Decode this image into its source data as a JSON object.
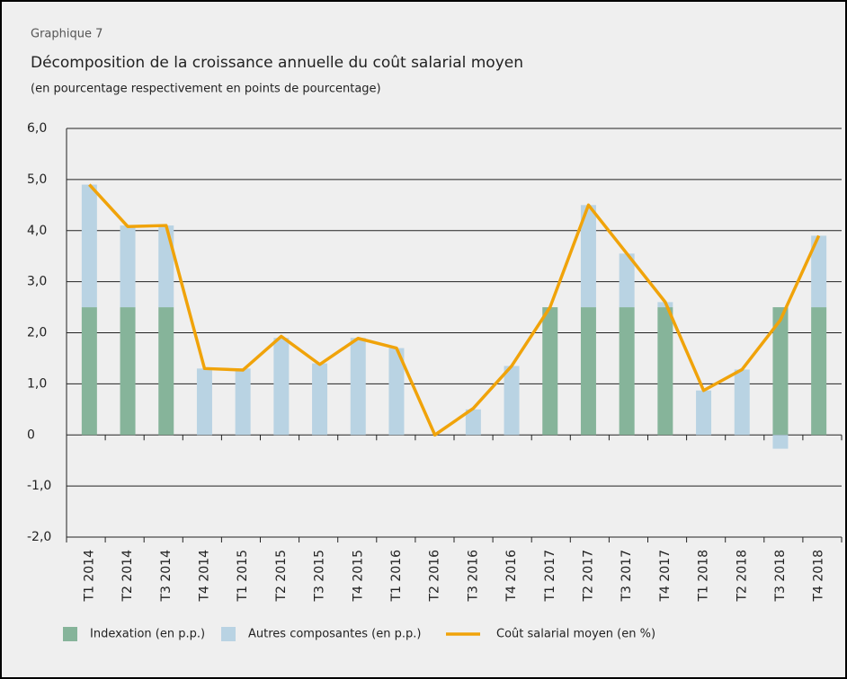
{
  "chart_data": {
    "type": "bar",
    "label": "Graphique 7",
    "title": "Décomposition de la croissance annuelle du coût salarial moyen",
    "subtitle": "(en pourcentage respectivement en points de pourcentage)",
    "categories": [
      "T1 2014",
      "T2 2014",
      "T3 2014",
      "T4 2014",
      "T1 2015",
      "T2 2015",
      "T3 2015",
      "T4 2015",
      "T1 2016",
      "T2 2016",
      "T3 2016",
      "T4 2016",
      "T1 2017",
      "T2 2017",
      "T3 2017",
      "T4 2017",
      "T1 2018",
      "T2 2018",
      "T3 2018",
      "T4 2018"
    ],
    "series": [
      {
        "name": "Indexation (en p.p.)",
        "color": "#86b49a",
        "stacked": true,
        "values": [
          2.5,
          2.5,
          2.5,
          0,
          0,
          0,
          0,
          0,
          0,
          0,
          0,
          0,
          2.5,
          2.5,
          2.5,
          2.5,
          0,
          0,
          2.5,
          2.5
        ]
      },
      {
        "name": "Autres composantes (en p.p.)",
        "color": "#b9d3e3",
        "stacked": true,
        "values": [
          2.4,
          1.6,
          1.6,
          1.3,
          1.3,
          1.9,
          1.4,
          1.9,
          1.7,
          0,
          0.5,
          1.35,
          0,
          2.0,
          1.05,
          0.1,
          0.87,
          1.28,
          -0.27,
          1.4
        ]
      },
      {
        "name": "Coût salarial moyen (en %)",
        "color": "#f0a30a",
        "type": "line",
        "values": [
          4.9,
          4.08,
          4.1,
          1.3,
          1.27,
          1.93,
          1.38,
          1.89,
          1.7,
          0,
          0.52,
          1.35,
          2.5,
          4.5,
          3.55,
          2.6,
          0.87,
          1.28,
          2.25,
          3.9
        ]
      }
    ],
    "ylim": [
      -2,
      6
    ],
    "yticks": [
      {
        "value": -2,
        "label": "-2,0"
      },
      {
        "value": -1,
        "label": "-1,0"
      },
      0,
      {
        "value": 1,
        "label": "1,0"
      },
      {
        "value": 2,
        "label": "2,0"
      },
      {
        "value": 3,
        "label": "3,0"
      },
      {
        "value": 4,
        "label": "4,0"
      },
      {
        "value": 5,
        "label": "5,0"
      },
      {
        "value": 6,
        "label": "6,0"
      }
    ],
    "grid": true
  }
}
